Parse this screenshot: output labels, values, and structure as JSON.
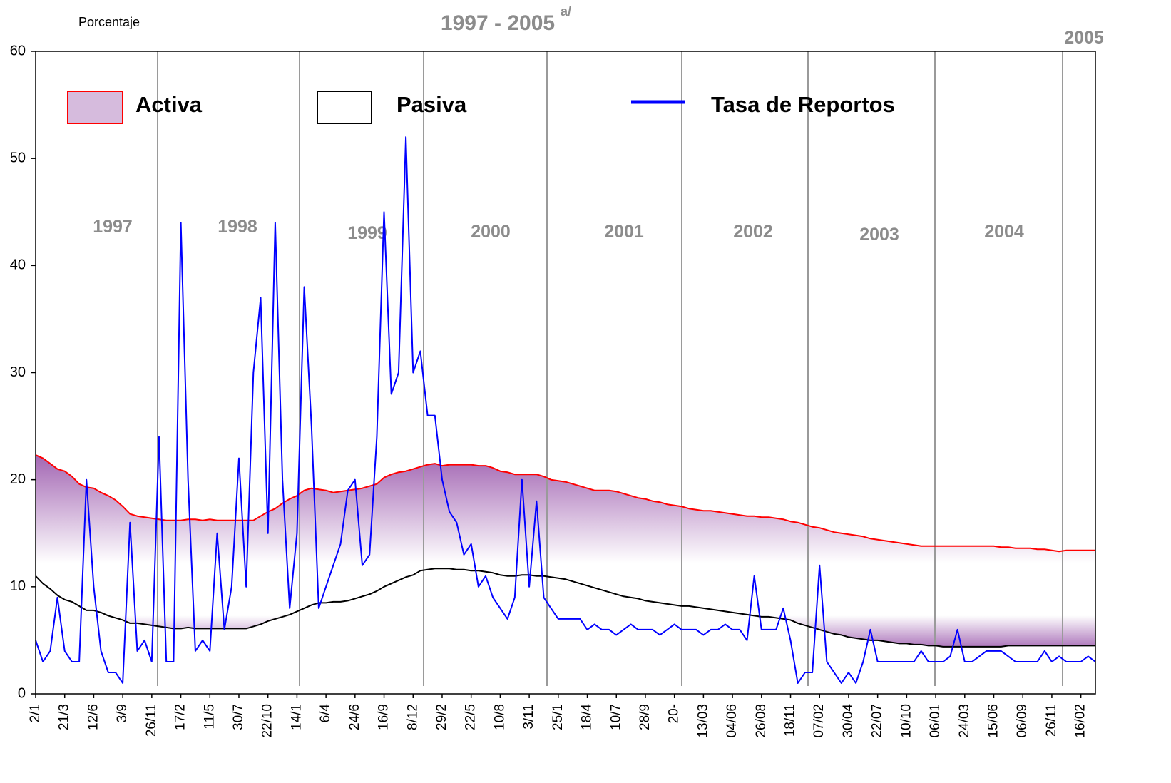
{
  "chart_data": {
    "type": "line",
    "title": "1997 - 2005",
    "title_note": "a/",
    "y_label": "Porcentaje",
    "annotations": [
      "1997",
      "1998",
      "1999",
      "2000",
      "2001",
      "2002",
      "2003",
      "2004",
      "2005"
    ],
    "ylim": [
      0,
      60
    ],
    "yticks": [
      0,
      10,
      20,
      30,
      40,
      50,
      60
    ],
    "categories": [
      "2/1",
      null,
      null,
      null,
      "21/3",
      null,
      null,
      null,
      "12/6",
      null,
      null,
      null,
      "3/9",
      null,
      null,
      null,
      "26/11",
      null,
      null,
      null,
      "17/2",
      null,
      null,
      null,
      "11/5",
      null,
      null,
      null,
      "30/7",
      null,
      null,
      null,
      "22/10",
      null,
      null,
      null,
      "14/1",
      null,
      null,
      null,
      "6/4",
      null,
      null,
      null,
      "24/6",
      null,
      null,
      null,
      "16/9",
      null,
      null,
      null,
      "8/12",
      null,
      null,
      null,
      "29/2",
      null,
      null,
      null,
      "22/5",
      null,
      null,
      null,
      "10/8",
      null,
      null,
      null,
      "3/11",
      null,
      null,
      null,
      "25/1",
      null,
      null,
      null,
      "18/4",
      null,
      null,
      null,
      "10/7",
      null,
      null,
      null,
      "28/9",
      null,
      null,
      null,
      "20-",
      null,
      null,
      null,
      "13/03",
      null,
      null,
      null,
      "04/06",
      null,
      null,
      null,
      "26/08",
      null,
      null,
      null,
      "18/11",
      null,
      null,
      null,
      "07/02",
      null,
      null,
      null,
      "30/04",
      null,
      null,
      null,
      "22/07",
      null,
      null,
      null,
      "10/10",
      null,
      null,
      null,
      "06/01",
      null,
      null,
      null,
      "24/03",
      null,
      null,
      null,
      "15/06",
      null,
      null,
      null,
      "06/09",
      null,
      null,
      null,
      "26/11",
      null,
      null,
      null,
      "16/02",
      null,
      null
    ],
    "series": [
      {
        "name": "Activa",
        "color": "#ff0000",
        "fill": "#a468b4",
        "values": [
          22.3,
          22.0,
          21.5,
          21,
          20.8,
          20.3,
          19.6,
          19.3,
          19.2,
          18.8,
          18.5,
          18.1,
          17.5,
          16.8,
          16.6,
          16.5,
          16.4,
          16.3,
          16.2,
          16.2,
          16.2,
          16.3,
          16.3,
          16.2,
          16.3,
          16.2,
          16.2,
          16.2,
          16.2,
          16.2,
          16.2,
          16.6,
          17.0,
          17.3,
          17.8,
          18.2,
          18.5,
          19.0,
          19.2,
          19.1,
          19.0,
          18.8,
          18.9,
          19.0,
          19.1,
          19.2,
          19.4,
          19.6,
          20.2,
          20.5,
          20.7,
          20.8,
          21.0,
          21.2,
          21.4,
          21.5,
          21.3,
          21.4,
          21.4,
          21.4,
          21.4,
          21.3,
          21.3,
          21.1,
          20.8,
          20.7,
          20.5,
          20.5,
          20.5,
          20.5,
          20.3,
          20.0,
          19.9,
          19.8,
          19.6,
          19.4,
          19.2,
          19.0,
          19.0,
          19.0,
          18.9,
          18.7,
          18.5,
          18.3,
          18.2,
          18.0,
          17.9,
          17.7,
          17.6,
          17.5,
          17.3,
          17.2,
          17.1,
          17.1,
          17.0,
          16.9,
          16.8,
          16.7,
          16.6,
          16.6,
          16.5,
          16.5,
          16.4,
          16.3,
          16.1,
          16.0,
          15.8,
          15.6,
          15.5,
          15.3,
          15.1,
          15.0,
          14.9,
          14.8,
          14.7,
          14.5,
          14.4,
          14.3,
          14.2,
          14.1,
          14.0,
          13.9,
          13.8,
          13.8,
          13.8,
          13.8,
          13.8,
          13.8,
          13.8,
          13.8,
          13.8,
          13.8,
          13.8,
          13.7,
          13.7,
          13.6,
          13.6,
          13.6,
          13.5,
          13.5,
          13.4,
          13.3,
          13.4,
          13.4,
          13.4,
          13.4,
          13.4
        ]
      },
      {
        "name": "Pasiva",
        "color": "#000000",
        "values": [
          11.0,
          10.3,
          9.8,
          9.2,
          8.8,
          8.6,
          8.2,
          7.8,
          7.8,
          7.6,
          7.3,
          7.1,
          6.9,
          6.6,
          6.6,
          6.5,
          6.4,
          6.3,
          6.2,
          6.1,
          6.1,
          6.2,
          6.1,
          6.1,
          6.1,
          6.1,
          6.1,
          6.1,
          6.1,
          6.1,
          6.3,
          6.5,
          6.8,
          7.0,
          7.2,
          7.4,
          7.7,
          8.0,
          8.3,
          8.5,
          8.5,
          8.6,
          8.6,
          8.7,
          8.9,
          9.1,
          9.3,
          9.6,
          10.0,
          10.3,
          10.6,
          10.9,
          11.1,
          11.5,
          11.6,
          11.7,
          11.7,
          11.7,
          11.6,
          11.6,
          11.5,
          11.5,
          11.4,
          11.3,
          11.1,
          11.0,
          11.0,
          11.1,
          11.1,
          11.0,
          11.0,
          10.9,
          10.8,
          10.7,
          10.5,
          10.3,
          10.1,
          9.9,
          9.7,
          9.5,
          9.3,
          9.1,
          9.0,
          8.9,
          8.7,
          8.6,
          8.5,
          8.4,
          8.3,
          8.2,
          8.2,
          8.1,
          8.0,
          7.9,
          7.8,
          7.7,
          7.6,
          7.5,
          7.4,
          7.3,
          7.2,
          7.2,
          7.1,
          7.0,
          6.9,
          6.6,
          6.4,
          6.2,
          6.0,
          5.8,
          5.6,
          5.5,
          5.3,
          5.2,
          5.1,
          5.0,
          5.0,
          4.9,
          4.8,
          4.7,
          4.7,
          4.6,
          4.6,
          4.5,
          4.5,
          4.4,
          4.4,
          4.4,
          4.4,
          4.4,
          4.4,
          4.4,
          4.4,
          4.4,
          4.5,
          4.5,
          4.5,
          4.5,
          4.5,
          4.5,
          4.5,
          4.5,
          4.5,
          4.5,
          4.5,
          4.5,
          4.5
        ]
      },
      {
        "name": "Tasa de Reportos",
        "color": "#0000ff",
        "values": [
          5,
          3,
          4,
          9,
          4,
          3,
          3,
          20,
          10,
          4,
          2,
          2,
          1,
          16,
          4,
          5,
          3,
          24,
          3,
          3,
          44,
          20,
          4,
          5,
          4,
          15,
          6,
          10,
          22,
          10,
          30,
          37,
          15,
          44,
          20,
          8,
          15,
          38,
          25,
          8,
          10,
          12,
          14,
          19,
          20,
          12,
          13,
          24,
          45,
          28,
          30,
          52,
          30,
          32,
          26,
          26,
          20,
          17,
          16,
          13,
          14,
          10,
          11,
          9,
          8,
          7,
          9,
          20,
          10,
          18,
          9,
          8,
          7,
          7,
          7,
          7,
          6,
          6.5,
          6,
          6,
          5.5,
          6,
          6.5,
          6,
          6,
          6,
          5.5,
          6,
          6.5,
          6,
          6,
          6,
          5.5,
          6,
          6,
          6.5,
          6,
          6,
          5,
          11,
          6,
          6,
          6,
          8,
          5,
          1,
          2,
          2,
          12,
          3,
          2,
          1,
          2,
          1,
          3,
          6,
          3,
          3,
          3,
          3,
          3,
          3,
          4,
          3,
          3,
          3,
          3.5,
          6,
          3,
          3,
          3.5,
          4,
          4,
          4,
          3.5,
          3,
          3,
          3,
          3,
          4,
          3,
          3.5,
          3,
          3,
          3,
          3.5,
          3
        ]
      }
    ],
    "grid": false
  }
}
